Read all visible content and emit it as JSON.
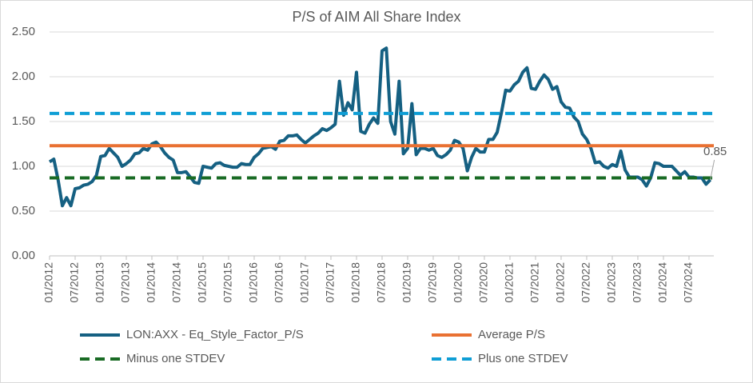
{
  "chart_data": {
    "type": "line",
    "title": "P/S of AIM All Share Index",
    "annotation": "0.85",
    "categories": [
      "01/2012",
      null,
      null,
      null,
      null,
      null,
      "07/2012",
      null,
      null,
      null,
      null,
      null,
      "01/2013",
      null,
      null,
      null,
      null,
      null,
      "07/2013",
      null,
      null,
      null,
      null,
      null,
      "01/2014",
      null,
      null,
      null,
      null,
      null,
      "07/2014",
      null,
      null,
      null,
      null,
      null,
      "01/2015",
      null,
      null,
      null,
      null,
      null,
      "07/2015",
      null,
      null,
      null,
      null,
      null,
      "01/2016",
      null,
      null,
      null,
      null,
      null,
      "07/2016",
      null,
      null,
      null,
      null,
      null,
      "01/2017",
      null,
      null,
      null,
      null,
      null,
      "07/2017",
      null,
      null,
      null,
      null,
      null,
      "01/2018",
      null,
      null,
      null,
      null,
      null,
      "07/2018",
      null,
      null,
      null,
      null,
      null,
      "01/2019",
      null,
      null,
      null,
      null,
      null,
      "07/2019",
      null,
      null,
      null,
      null,
      null,
      "01/2020",
      null,
      null,
      null,
      null,
      null,
      "07/2020",
      null,
      null,
      null,
      null,
      null,
      "01/2021",
      null,
      null,
      null,
      null,
      null,
      "07/2021",
      null,
      null,
      null,
      null,
      null,
      "01/2022",
      null,
      null,
      null,
      null,
      null,
      "07/2022",
      null,
      null,
      null,
      null,
      null,
      "01/2023",
      null,
      null,
      null,
      null,
      null,
      "07/2023",
      null,
      null,
      null,
      null,
      null,
      "01/2024",
      null,
      null,
      null,
      null,
      null,
      "07/2024",
      null,
      null,
      null,
      null,
      null
    ],
    "series": [
      {
        "name": "LON:AXX - Eq_Style_Factor_P/S",
        "color": "#156082",
        "values": [
          1.05,
          1.08,
          0.85,
          0.56,
          0.65,
          0.56,
          0.75,
          0.76,
          0.79,
          0.8,
          0.83,
          0.9,
          1.11,
          1.12,
          1.2,
          1.15,
          1.1,
          1.0,
          1.03,
          1.07,
          1.14,
          1.15,
          1.2,
          1.18,
          1.25,
          1.27,
          1.22,
          1.15,
          1.1,
          1.07,
          0.93,
          0.93,
          0.94,
          0.88,
          0.82,
          0.81,
          1.0,
          0.99,
          0.98,
          1.03,
          1.04,
          1.01,
          1.0,
          0.99,
          0.99,
          1.03,
          1.02,
          1.02,
          1.1,
          1.14,
          1.2,
          1.21,
          1.22,
          1.19,
          1.28,
          1.29,
          1.34,
          1.34,
          1.35,
          1.3,
          1.26,
          1.3,
          1.34,
          1.37,
          1.42,
          1.4,
          1.43,
          1.47,
          1.95,
          1.57,
          1.71,
          1.63,
          2.05,
          1.39,
          1.37,
          1.47,
          1.54,
          1.48,
          2.29,
          2.32,
          1.5,
          1.36,
          1.95,
          1.14,
          1.2,
          1.7,
          1.13,
          1.2,
          1.2,
          1.18,
          1.2,
          1.12,
          1.1,
          1.13,
          1.18,
          1.29,
          1.27,
          1.2,
          0.95,
          1.1,
          1.2,
          1.16,
          1.16,
          1.3,
          1.3,
          1.38,
          1.6,
          1.85,
          1.84,
          1.91,
          1.95,
          2.05,
          2.1,
          1.87,
          1.86,
          1.95,
          2.02,
          1.97,
          1.86,
          1.89,
          1.72,
          1.66,
          1.65,
          1.55,
          1.5,
          1.36,
          1.3,
          1.2,
          1.04,
          1.05,
          1.0,
          0.98,
          1.02,
          1.0,
          1.17,
          0.96,
          0.88,
          0.88,
          0.88,
          0.85,
          0.78,
          0.87,
          1.04,
          1.03,
          1.0,
          1.0,
          1.0,
          0.95,
          0.9,
          0.94,
          0.88,
          0.88,
          0.87,
          0.87,
          0.8,
          0.85
        ]
      },
      {
        "name": "Average P/S",
        "color": "#e97132",
        "value": 1.23
      },
      {
        "name": "Minus one STDEV",
        "color": "#196b24",
        "value": 0.87,
        "dashed": true
      },
      {
        "name": "Plus one STDEV",
        "color": "#0f9ed5",
        "value": 1.59,
        "dashed": true
      }
    ],
    "ylim": [
      0,
      2.5
    ],
    "yticks": [
      {
        "value": 0,
        "label": "0.00"
      },
      {
        "value": 0.5,
        "label": "0.50"
      },
      {
        "value": 1,
        "label": "1.00"
      },
      {
        "value": 1.5,
        "label": "1.50"
      },
      {
        "value": 2,
        "label": "2.00"
      },
      {
        "value": 2.5,
        "label": "2.50"
      }
    ],
    "grid": true
  }
}
